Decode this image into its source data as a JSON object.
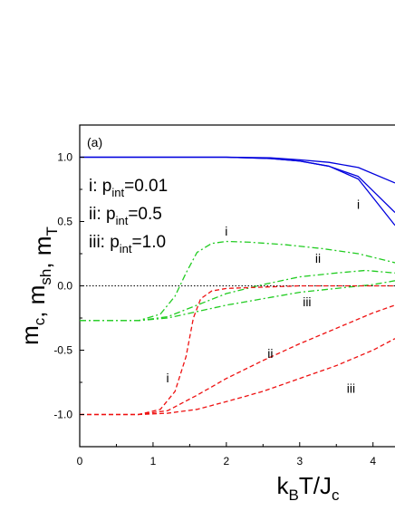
{
  "chart_data": {
    "type": "line",
    "panel_label": "(a)",
    "xlabel": {
      "main": "k",
      "sub1": "B",
      "mid": "T/J",
      "sub2": "c"
    },
    "ylabel": {
      "parts": [
        {
          "t": "m"
        },
        {
          "s": "c"
        },
        {
          "t": ", m"
        },
        {
          "s": "sh"
        },
        {
          "t": ", m"
        },
        {
          "s": "T"
        }
      ]
    },
    "xlim": [
      0,
      4.3
    ],
    "ylim": [
      -1.25,
      1.25
    ],
    "xticks": [
      0,
      1,
      2,
      3,
      4
    ],
    "yticks": [
      -1.0,
      -0.5,
      0.0,
      0.5,
      1.0
    ],
    "xtick_labels": [
      "0",
      "1",
      "2",
      "3",
      "4"
    ],
    "ytick_labels": [
      "-1.0",
      "-0.5",
      "0.0",
      "0.5",
      "1.0"
    ],
    "legend_text": [
      {
        "label": "i: p",
        "sub": "int",
        "value": "=0.01"
      },
      {
        "label": "ii: p",
        "sub": "int",
        "value": "=0.5"
      },
      {
        "label": "iii: p",
        "sub": "int",
        "value": "=1.0"
      }
    ],
    "reference_line": {
      "y": 0.0,
      "style": "dotted",
      "color": "#000000"
    },
    "series": [
      {
        "group": "m_c",
        "curve": "i",
        "color": "#0000dd",
        "style": "solid",
        "x": [
          0,
          2.0,
          2.6,
          3.0,
          3.4,
          3.8,
          4.3
        ],
        "y": [
          1.0,
          1.0,
          0.99,
          0.97,
          0.93,
          0.83,
          0.47
        ]
      },
      {
        "group": "m_c",
        "curve": "ii",
        "color": "#0000dd",
        "style": "solid",
        "x": [
          0,
          2.0,
          2.6,
          3.0,
          3.4,
          3.8,
          4.3
        ],
        "y": [
          1.0,
          1.0,
          0.99,
          0.97,
          0.93,
          0.85,
          0.57
        ]
      },
      {
        "group": "m_c",
        "curve": "iii",
        "color": "#0000dd",
        "style": "solid",
        "x": [
          0,
          2.0,
          2.6,
          3.0,
          3.4,
          3.8,
          4.3
        ],
        "y": [
          1.0,
          1.0,
          0.995,
          0.98,
          0.96,
          0.92,
          0.8
        ]
      },
      {
        "group": "m_T",
        "curve": "i",
        "color": "#22cc22",
        "style": "dashdot",
        "x": [
          0,
          0.8,
          1.1,
          1.3,
          1.45,
          1.6,
          1.8,
          2.0,
          2.3,
          2.8,
          3.3,
          3.8,
          4.3
        ],
        "y": [
          -0.27,
          -0.27,
          -0.22,
          -0.08,
          0.1,
          0.26,
          0.33,
          0.345,
          0.34,
          0.32,
          0.29,
          0.25,
          0.18
        ]
      },
      {
        "group": "m_T",
        "curve": "ii",
        "color": "#22cc22",
        "style": "dashdot",
        "x": [
          0,
          0.8,
          1.2,
          1.6,
          2.0,
          2.5,
          3.0,
          3.5,
          3.9,
          4.3
        ],
        "y": [
          -0.27,
          -0.27,
          -0.24,
          -0.15,
          -0.06,
          0.01,
          0.07,
          0.1,
          0.12,
          0.1
        ]
      },
      {
        "group": "m_T",
        "curve": "iii",
        "color": "#22cc22",
        "style": "dashdot",
        "x": [
          0,
          0.8,
          1.2,
          1.6,
          2.0,
          2.5,
          3.0,
          3.5,
          4.0,
          4.3
        ],
        "y": [
          -0.27,
          -0.27,
          -0.25,
          -0.2,
          -0.15,
          -0.1,
          -0.05,
          -0.02,
          0.01,
          0.04
        ]
      },
      {
        "group": "m_sh",
        "curve": "i",
        "color": "#ee1111",
        "style": "dashed",
        "x": [
          0,
          0.8,
          1.1,
          1.3,
          1.45,
          1.55,
          1.65,
          1.8,
          2.0,
          2.5,
          3.0,
          3.5,
          4.0,
          4.3
        ],
        "y": [
          -1.0,
          -1.0,
          -0.96,
          -0.82,
          -0.55,
          -0.25,
          -0.1,
          -0.04,
          -0.02,
          -0.01,
          0.0,
          0.0,
          0.0,
          0.0
        ]
      },
      {
        "group": "m_sh",
        "curve": "ii",
        "color": "#ee1111",
        "style": "dashed",
        "x": [
          0,
          0.8,
          1.2,
          1.6,
          2.0,
          2.5,
          3.0,
          3.5,
          4.0,
          4.3
        ],
        "y": [
          -1.0,
          -1.0,
          -0.97,
          -0.85,
          -0.72,
          -0.58,
          -0.45,
          -0.33,
          -0.21,
          -0.15
        ]
      },
      {
        "group": "m_sh",
        "curve": "iii",
        "color": "#ee1111",
        "style": "dashed",
        "x": [
          0,
          0.8,
          1.2,
          1.6,
          2.0,
          2.5,
          3.0,
          3.5,
          4.0,
          4.3
        ],
        "y": [
          -1.0,
          -1.0,
          -0.99,
          -0.96,
          -0.9,
          -0.82,
          -0.72,
          -0.62,
          -0.5,
          -0.41
        ]
      }
    ],
    "curve_labels": [
      {
        "text": "i",
        "x": 3.8,
        "y": 0.6
      },
      {
        "text": "i",
        "x": 2.0,
        "y": 0.39
      },
      {
        "text": "ii",
        "x": 3.25,
        "y": 0.18
      },
      {
        "text": "iii",
        "x": 3.1,
        "y": -0.16
      },
      {
        "text": "ii",
        "x": 2.6,
        "y": -0.56
      },
      {
        "text": "i",
        "x": 1.2,
        "y": -0.75
      },
      {
        "text": "iii",
        "x": 3.7,
        "y": -0.83
      }
    ]
  }
}
